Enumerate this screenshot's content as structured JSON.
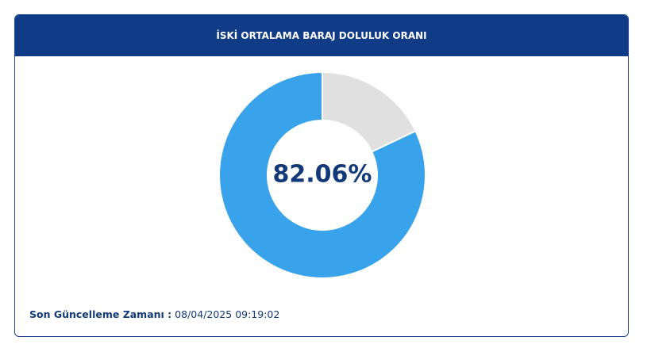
{
  "chart_data": {
    "type": "donut",
    "title": "İSKİ ORTALAMA BARAJ DOLULUK ORANI",
    "values": [
      82.06,
      17.94
    ],
    "value_labels": [
      "82.06%",
      null
    ],
    "colors": [
      "#38a3ea",
      "#e0e0e0"
    ]
  },
  "footer": {
    "label": "Son Güncelleme Zamanı :",
    "value": "08/04/2025 09:19:02"
  }
}
